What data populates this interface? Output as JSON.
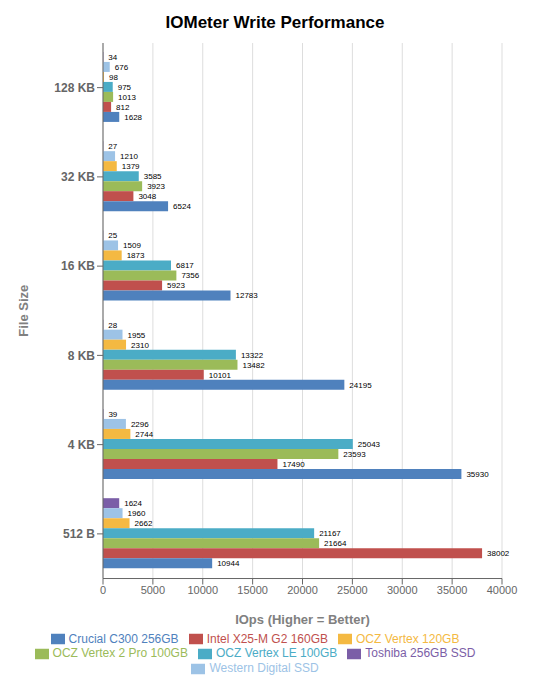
{
  "chart_data": {
    "type": "bar",
    "orientation": "horizontal",
    "title": "IOMeter Write Performance",
    "xlabel": "IOps (Higher = Better)",
    "ylabel": "File Size",
    "categories": [
      "512 B",
      "4 KB",
      "8 KB",
      "16 KB",
      "32 KB",
      "128 KB"
    ],
    "series": [
      {
        "name": "Toshiba 256GB SSD",
        "color": "#7B5EA7",
        "values": [
          1624,
          39,
          28,
          25,
          27,
          34
        ]
      },
      {
        "name": "Western Digital SSD",
        "color": "#9DC3E6",
        "values": [
          1960,
          2296,
          1955,
          1509,
          1210,
          676
        ]
      },
      {
        "name": "OCZ Vertex 120GB",
        "color": "#F4B942",
        "values": [
          2662,
          2744,
          2310,
          1873,
          1379,
          98
        ]
      },
      {
        "name": "OCZ Vertex LE 100GB",
        "color": "#4BACC6",
        "values": [
          21167,
          25043,
          13322,
          6817,
          3585,
          975
        ]
      },
      {
        "name": "OCZ Vertex 2 Pro 100GB",
        "color": "#9BBB59",
        "values": [
          21664,
          23593,
          13482,
          7356,
          3923,
          1013
        ]
      },
      {
        "name": "Intel X25-M G2 160GB",
        "color": "#C0504D",
        "values": [
          38002,
          17490,
          10101,
          5923,
          3048,
          812
        ]
      },
      {
        "name": "Crucial C300 256GB",
        "color": "#4F81BD",
        "values": [
          10944,
          35930,
          24195,
          12783,
          6524,
          1628
        ]
      }
    ],
    "xlim": [
      0,
      40000
    ],
    "xticks": [
      0,
      5000,
      10000,
      15000,
      20000,
      25000,
      30000,
      35000,
      40000
    ],
    "grid": true,
    "data_labels": true,
    "legend": "bottom"
  }
}
